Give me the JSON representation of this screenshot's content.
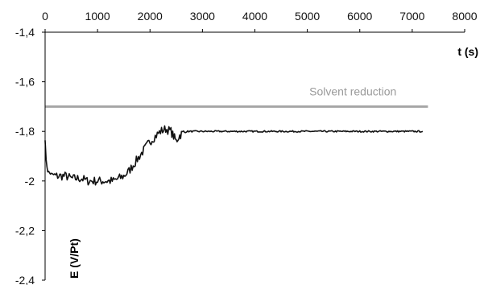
{
  "chart_data": {
    "type": "line",
    "xlabel": "t (s)",
    "ylabel": "E (V/Pt)",
    "xlim": [
      0,
      8000
    ],
    "ylim": [
      -2.4,
      -1.4
    ],
    "x_axis_position": "top",
    "x_ticks": [
      0,
      1000,
      2000,
      3000,
      4000,
      5000,
      6000,
      7000,
      8000
    ],
    "x_tick_labels": [
      "0",
      "1000",
      "2000",
      "3000",
      "4000",
      "5000",
      "6000",
      "7000",
      "8000"
    ],
    "y_ticks": [
      -1.4,
      -1.6,
      -1.8,
      -2.0,
      -2.2,
      -2.4
    ],
    "y_tick_labels": [
      "-1,4",
      "-1,6",
      "-1,8",
      "-2",
      "-2,2",
      "-2,4"
    ],
    "grid": false,
    "series": [
      {
        "color": "#111111",
        "x": [
          0,
          20,
          50,
          100,
          200,
          300,
          400,
          500,
          600,
          700,
          800,
          900,
          1000,
          1100,
          1200,
          1300,
          1400,
          1500,
          1600,
          1700,
          1800,
          1900,
          2000,
          2100,
          2200,
          2300,
          2400,
          2450,
          2500,
          2550,
          2600,
          2700,
          2800,
          2900,
          3000,
          3200,
          3500,
          4000,
          4500,
          5000,
          5500,
          6000,
          6500,
          7000,
          7200
        ],
        "y": [
          -1.83,
          -1.92,
          -1.96,
          -1.97,
          -1.98,
          -1.98,
          -1.98,
          -1.99,
          -1.99,
          -1.99,
          -2.0,
          -2.0,
          -2.0,
          -2.0,
          -2.0,
          -2.0,
          -1.99,
          -1.98,
          -1.96,
          -1.93,
          -1.9,
          -1.87,
          -1.84,
          -1.82,
          -1.8,
          -1.79,
          -1.8,
          -1.82,
          -1.84,
          -1.82,
          -1.81,
          -1.8,
          -1.8,
          -1.8,
          -1.8,
          -1.8,
          -1.8,
          -1.8,
          -1.8,
          -1.8,
          -1.8,
          -1.8,
          -1.8,
          -1.8,
          -1.8
        ]
      }
    ],
    "reference_lines": [
      {
        "label": "Solvent reduction",
        "y": -1.7,
        "x_start": 0,
        "x_end": 7300,
        "color": "#a6a6a6"
      }
    ]
  }
}
